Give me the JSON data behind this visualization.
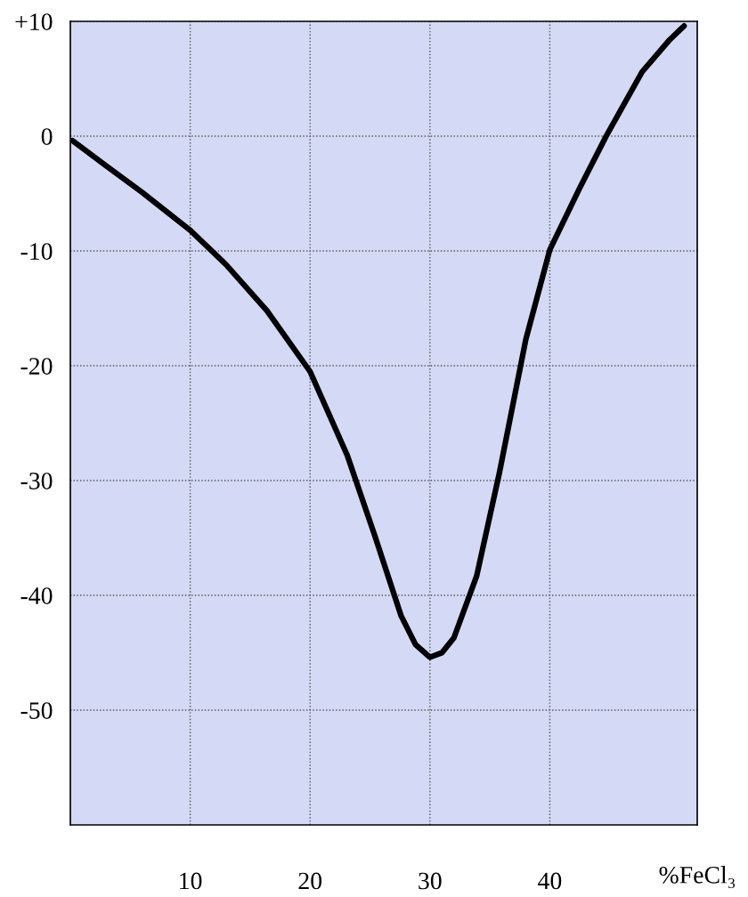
{
  "chart_data": {
    "type": "line",
    "xlabel": "%FeCl₃",
    "x": [
      0.2,
      3,
      6,
      10,
      13,
      16.4,
      20,
      23.1,
      25.4,
      27.6,
      28.8,
      30,
      31,
      32,
      33.9,
      35.8,
      38,
      40,
      42.5,
      44.7,
      47.7,
      50,
      51.2
    ],
    "series": [
      {
        "color": "#000000",
        "values": [
          -0.4,
          -2.6,
          -4.9,
          -8.2,
          -11.2,
          -15.2,
          -20.5,
          -27.8,
          -34.8,
          -41.8,
          -44.3,
          -45.4,
          -45,
          -43.7,
          -38.3,
          -29.3,
          -17.7,
          -9.9,
          -4.5,
          0,
          5.6,
          8.4,
          9.6
        ]
      }
    ],
    "xlim": [
      0,
      52.3
    ],
    "ylim": [
      -60,
      10
    ],
    "xticks": [
      10,
      20,
      30,
      40
    ],
    "yticks": [
      {
        "value": 10,
        "label": "+10"
      },
      0,
      -10,
      -20,
      -30,
      -40,
      -50
    ],
    "grid": true,
    "marker": "none",
    "line_style": "solid"
  }
}
